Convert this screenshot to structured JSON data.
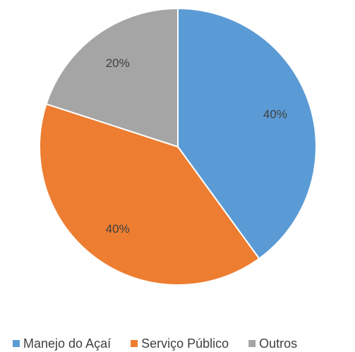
{
  "chart_data": {
    "type": "pie",
    "categories": [
      "Manejo do Açaí",
      "Serviço Público",
      "Outros"
    ],
    "values": [
      40,
      40,
      20
    ],
    "value_labels": [
      "40%",
      "40%",
      "20%"
    ],
    "colors": [
      "#5b9bd5",
      "#ed7d31",
      "#a5a5a5"
    ],
    "legend": "bottom"
  }
}
